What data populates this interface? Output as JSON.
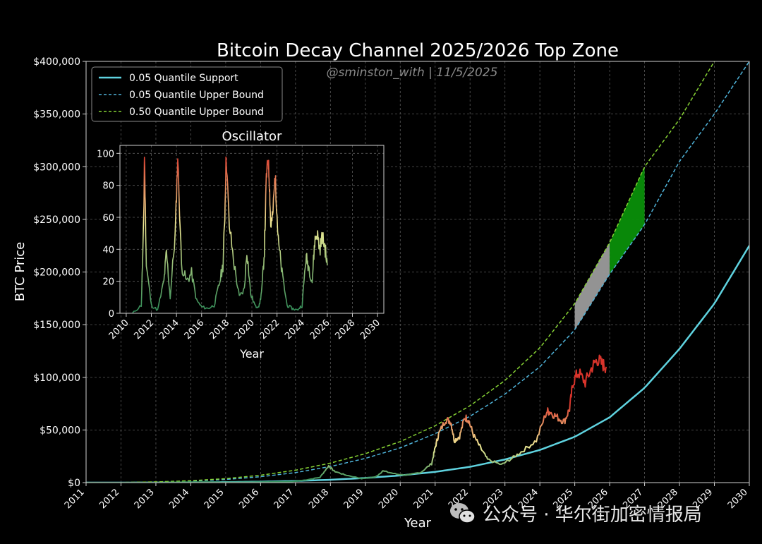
{
  "chart_data": {
    "type": "line",
    "title": "Bitcoin Decay Channel 2025/2026 Top Zone",
    "subtitle": "@sminston_with  |  11/5/2025",
    "xlabel": "Year",
    "ylabel": "BTC Price",
    "xlim": [
      2011,
      2030
    ],
    "ylim": [
      0,
      400000
    ],
    "x_ticks": [
      "2011",
      "2012",
      "2013",
      "2014",
      "2015",
      "2016",
      "2017",
      "2018",
      "2019",
      "2020",
      "2021",
      "2022",
      "2023",
      "2024",
      "2025",
      "2026",
      "2027",
      "2028",
      "2029",
      "2030"
    ],
    "y_ticks": [
      "$0",
      "$50,000",
      "$100,000",
      "$150,000",
      "$200,000",
      "$250,000",
      "$300,000",
      "$350,000",
      "$400,000"
    ],
    "grid": true,
    "legend": {
      "placement": "top-left",
      "entries": [
        "0.05 Quantile Support",
        "0.05 Quantile Upper Bound",
        "0.50 Quantile Upper Bound"
      ]
    },
    "colors": {
      "support": "#5fd3e0",
      "upper_005": "#4fb3d9",
      "upper_050": "#86d234",
      "top_zone_2025": "#9b9b9b",
      "top_zone_2026": "#0a8f0a",
      "price_low": "#2e8b57",
      "price_mid": "#f2ec96",
      "price_high": "#d9342b"
    },
    "series": [
      {
        "name": "0.05 Quantile Support",
        "style": "solid",
        "x": [
          2011,
          2012,
          2013,
          2014,
          2015,
          2016,
          2017,
          2018,
          2019,
          2020,
          2021,
          2022,
          2023,
          2024,
          2025,
          2026,
          2027,
          2028,
          2029,
          2030
        ],
        "values": [
          0,
          0,
          100,
          200,
          500,
          900,
          1600,
          2700,
          4400,
          6800,
          10200,
          15000,
          22000,
          31000,
          43500,
          62000,
          90000,
          127000,
          170000,
          225000
        ]
      },
      {
        "name": "0.05 Quantile Upper Bound",
        "style": "dashed",
        "x": [
          2011,
          2012,
          2013,
          2014,
          2015,
          2016,
          2017,
          2018,
          2019,
          2020,
          2021,
          2022,
          2023,
          2024,
          2025,
          2026,
          2027,
          2028,
          2029,
          2030
        ],
        "values": [
          0,
          100,
          500,
          1400,
          3000,
          5600,
          9500,
          15300,
          23000,
          33000,
          46500,
          63000,
          84000,
          110000,
          145000,
          198000,
          245000,
          305000,
          350000,
          400000
        ]
      },
      {
        "name": "0.50 Quantile Upper Bound",
        "style": "dashed",
        "x": [
          2011,
          2012,
          2013,
          2014,
          2015,
          2016,
          2017,
          2018,
          2019,
          2020,
          2021,
          2022,
          2023,
          2024,
          2025,
          2026,
          2027,
          2028,
          2029
        ],
        "values": [
          0,
          150,
          700,
          1800,
          3800,
          7000,
          11800,
          18500,
          27500,
          39000,
          54000,
          73000,
          97000,
          128000,
          170000,
          228000,
          300000,
          345000,
          400000
        ]
      }
    ],
    "price": {
      "x": [
        2011,
        2012,
        2013,
        2013.8,
        2014.5,
        2015,
        2016,
        2016.9,
        2017.3,
        2017.7,
        2017.95,
        2018.1,
        2018.4,
        2018.9,
        2019.3,
        2019.5,
        2019.9,
        2020.2,
        2020.6,
        2020.9,
        2021.0,
        2021.1,
        2021.3,
        2021.45,
        2021.55,
        2021.7,
        2021.85,
        2021.95,
        2022.1,
        2022.3,
        2022.5,
        2022.9,
        2023.2,
        2023.5,
        2023.9,
        2024.2,
        2024.3,
        2024.5,
        2024.7,
        2024.85,
        2024.95,
        2025.1,
        2025.3,
        2025.5,
        2025.65,
        2025.8,
        2025.9
      ],
      "values": [
        0,
        0,
        0,
        500,
        500,
        300,
        500,
        1000,
        2500,
        5000,
        16000,
        11000,
        7500,
        3800,
        5500,
        11000,
        8000,
        7000,
        10000,
        18000,
        33000,
        46000,
        60000,
        58000,
        40000,
        44000,
        62000,
        60000,
        45000,
        33000,
        22000,
        17000,
        23000,
        30000,
        40000,
        68000,
        67000,
        62000,
        58000,
        70000,
        95000,
        105000,
        95000,
        110000,
        117000,
        112000,
        110000
      ]
    },
    "top_zones": [
      {
        "label": "2025",
        "x": [
          2025,
          2026
        ]
      },
      {
        "label": "2026",
        "x": [
          2026,
          2027
        ]
      }
    ],
    "inset": {
      "title": "Oscillator",
      "xlabel": "Year",
      "xlim": [
        2009.5,
        2030.5
      ],
      "ylim": [
        0,
        105
      ],
      "x_ticks": [
        "2010",
        "2012",
        "2014",
        "2016",
        "2018",
        "2020",
        "2022",
        "2024",
        "2026",
        "2028",
        "2030"
      ],
      "y_ticks": [
        "0",
        "20",
        "40",
        "60",
        "80",
        "100"
      ],
      "x": [
        2010.5,
        2011.2,
        2011.4,
        2011.45,
        2011.6,
        2012.0,
        2012.5,
        2013.0,
        2013.2,
        2013.5,
        2013.9,
        2014.1,
        2014.4,
        2014.8,
        2015.2,
        2015.6,
        2016.0,
        2016.5,
        2017.0,
        2017.4,
        2017.7,
        2017.85,
        2017.95,
        2018.2,
        2018.6,
        2019.0,
        2019.4,
        2019.6,
        2019.9,
        2020.3,
        2020.6,
        2020.8,
        2021.0,
        2021.15,
        2021.3,
        2021.4,
        2021.5,
        2021.65,
        2021.85,
        2021.95,
        2022.1,
        2022.4,
        2022.8,
        2023.2,
        2023.6,
        2024.0,
        2024.3,
        2024.5,
        2024.8,
        2025.0,
        2025.2,
        2025.4,
        2025.6,
        2025.8,
        2026.0
      ],
      "values": [
        0,
        5,
        60,
        100,
        30,
        5,
        2,
        20,
        38,
        10,
        50,
        98,
        30,
        20,
        25,
        8,
        4,
        3,
        5,
        18,
        30,
        62,
        100,
        55,
        30,
        10,
        15,
        40,
        12,
        4,
        5,
        15,
        40,
        85,
        97,
        80,
        55,
        60,
        87,
        70,
        45,
        25,
        5,
        3,
        2,
        5,
        35,
        30,
        20,
        45,
        50,
        40,
        48,
        42,
        30
      ]
    }
  }
}
